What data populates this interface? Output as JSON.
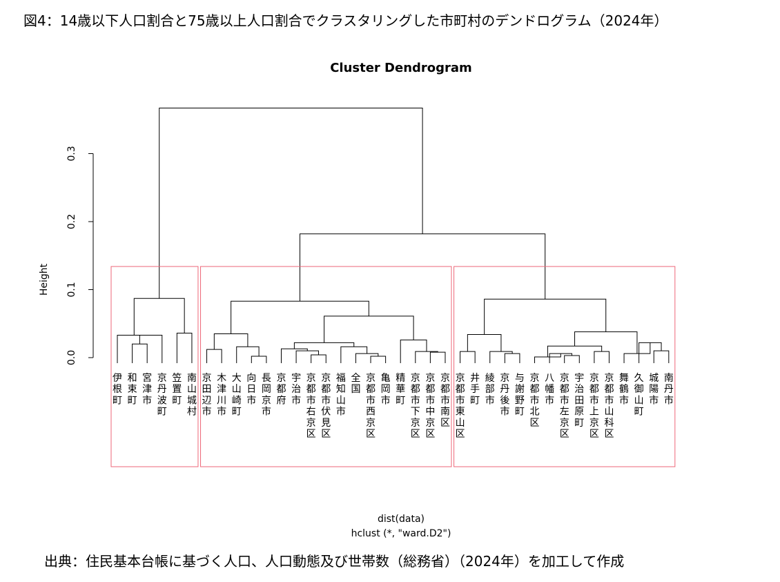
{
  "figure": {
    "title": "図4：14歳以下人口割合と75歳以上人口割合でクラスタリングした市町村のデンドログラム（2024年）",
    "source": "出典：住民基本台帳に基づく人口、人口動態及び世帯数（総務省）（2024年）を加工して作成"
  },
  "chart_data": {
    "type": "dendrogram",
    "title": "Cluster Dendrogram",
    "ylabel": "Height",
    "xlabel": "dist(data)",
    "sublabel": "hclust (*, \"ward.D2\")",
    "y_ticks": [
      0.0,
      0.1,
      0.2,
      0.3
    ],
    "y_tick_labels": [
      "0.0",
      "0.1",
      "0.2",
      "0.3"
    ],
    "ylim": [
      0,
      0.37
    ],
    "leaves": [
      "伊根町",
      "和束町",
      "宮津市",
      "京丹波町",
      "笠置町",
      "南山城村",
      "京田辺市",
      "木津川市",
      "大山崎町",
      "向日市",
      "長岡京市",
      "京都府",
      "宇治市",
      "京都市右京区",
      "京都市伏見区",
      "福知山市",
      "全国",
      "京都市西京区",
      "亀岡市",
      "精華町",
      "京都市下京区",
      "京都市中京区",
      "京都市南区",
      "京都市東山区",
      "井手町",
      "綾部市",
      "京丹後市",
      "与謝野町",
      "京都市北区",
      "八幡市",
      "京都市左京区",
      "宇治田原町",
      "京都市上京区",
      "京都市山科区",
      "舞鶴市",
      "久御山町",
      "城陽市",
      "南丹市"
    ],
    "merges": [
      {
        "a": "L1",
        "b": "L2",
        "height": 0.02
      },
      {
        "a": "L3",
        "b": "M0",
        "height": 0.033
      },
      {
        "a": "L0",
        "b": "M1",
        "height": 0.033
      },
      {
        "a": "L4",
        "b": "L5",
        "height": 0.036
      },
      {
        "a": "M2",
        "b": "M3",
        "height": 0.087
      },
      {
        "a": "L6",
        "b": "L7",
        "height": 0.012
      },
      {
        "a": "L9",
        "b": "L10",
        "height": 0.002
      },
      {
        "a": "L8",
        "b": "M6",
        "height": 0.016
      },
      {
        "a": "M5",
        "b": "M7",
        "height": 0.035
      },
      {
        "a": "L13",
        "b": "L14",
        "height": 0.004
      },
      {
        "a": "L12",
        "b": "M9",
        "height": 0.01
      },
      {
        "a": "L11",
        "b": "M10",
        "height": 0.013
      },
      {
        "a": "L17",
        "b": "L18",
        "height": 0.002
      },
      {
        "a": "L16",
        "b": "M12",
        "height": 0.006
      },
      {
        "a": "L15",
        "b": "M13",
        "height": 0.016
      },
      {
        "a": "M11",
        "b": "M14",
        "height": 0.022
      },
      {
        "a": "L21",
        "b": "L22",
        "height": 0.008
      },
      {
        "a": "L20",
        "b": "M16",
        "height": 0.009
      },
      {
        "a": "L19",
        "b": "M17",
        "height": 0.026
      },
      {
        "a": "M15",
        "b": "M18",
        "height": 0.061
      },
      {
        "a": "M8",
        "b": "M19",
        "height": 0.083
      },
      {
        "a": "L26",
        "b": "L27",
        "height": 0.006
      },
      {
        "a": "L25",
        "b": "M21",
        "height": 0.009
      },
      {
        "a": "L23",
        "b": "L24",
        "height": 0.009
      },
      {
        "a": "M23",
        "b": "M22",
        "height": 0.034
      },
      {
        "a": "L30",
        "b": "L31",
        "height": 0.003
      },
      {
        "a": "L29",
        "b": "M25",
        "height": 0.006
      },
      {
        "a": "L28",
        "b": "M26",
        "height": 0.001
      },
      {
        "a": "L32",
        "b": "L33",
        "height": 0.009
      },
      {
        "a": "M27",
        "b": "M28",
        "height": 0.017
      },
      {
        "a": "L36",
        "b": "L37",
        "height": 0.01
      },
      {
        "a": "L35",
        "b": "M30",
        "height": 0.022
      },
      {
        "a": "L34",
        "b": "M31",
        "height": 0.006
      },
      {
        "a": "M29",
        "b": "M32",
        "height": 0.038
      },
      {
        "a": "M24",
        "b": "M33",
        "height": 0.086
      },
      {
        "a": "M20",
        "b": "M34",
        "height": 0.182
      },
      {
        "a": "M4",
        "b": "M35",
        "height": 0.367
      }
    ],
    "cluster_boxes": [
      {
        "from_leaf": 0,
        "to_leaf": 5
      },
      {
        "from_leaf": 6,
        "to_leaf": 22
      },
      {
        "from_leaf": 23,
        "to_leaf": 37
      }
    ],
    "colors": {
      "branches": "#000000",
      "cluster_box": "#ee6677",
      "axis": "#000000"
    }
  }
}
